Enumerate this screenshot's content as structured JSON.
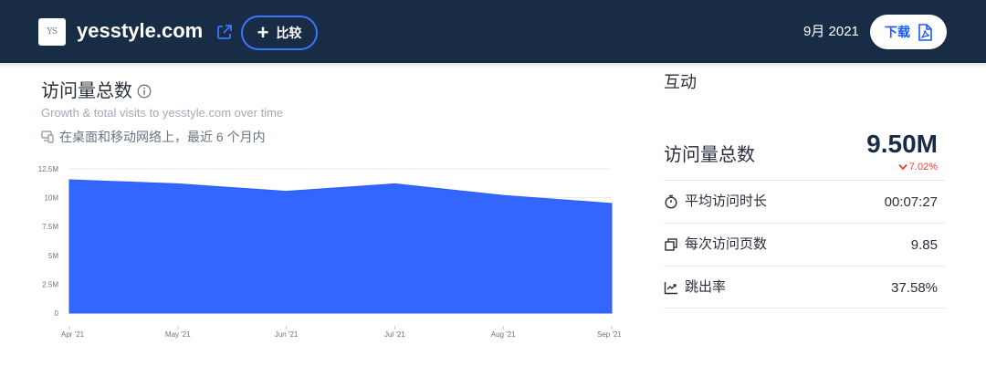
{
  "header": {
    "logo_text": "YS",
    "site_name": "yesstyle.com",
    "compare_label": "比较",
    "date": "9月 2021",
    "download_label": "下载",
    "bg_color": "#192c45",
    "accent_color": "#195afe",
    "icons": [
      "external-link-icon",
      "plus-icon",
      "pdf-icon"
    ]
  },
  "visits": {
    "title": "访问量总数",
    "subtitle": "Growth & total visits to yesstyle.com over time",
    "scope": "在桌面和移动网络上，最近 6 个月内",
    "icons": [
      "info-icon",
      "devices-icon"
    ]
  },
  "chart_data": {
    "type": "area",
    "categories": [
      "Apr '21",
      "May '21",
      "Jun '21",
      "Jul '21",
      "Aug '21",
      "Sep '21"
    ],
    "series": [
      {
        "values": [
          11.55,
          11.2,
          10.55,
          11.2,
          10.2,
          9.5
        ],
        "color": "#3366ff"
      }
    ],
    "unit": "M",
    "ylim": [
      0,
      12.5
    ],
    "yticks": [
      "0",
      "2.5M",
      "5M",
      "7.5M",
      "10M",
      "12.5M"
    ],
    "grid": true,
    "legend": "none"
  },
  "engagement": {
    "title": "互动",
    "total_visits_label": "访问量总数",
    "total_visits_value": "9.50M",
    "total_visits_change": "7.02%",
    "change_direction": "down",
    "change_color": "#ef3e36",
    "rows": [
      {
        "icon": "timer-icon",
        "label": "平均访问时长",
        "value": "00:07:27"
      },
      {
        "icon": "pages-icon",
        "label": "每次访问页数",
        "value": "9.85"
      },
      {
        "icon": "bounce-icon",
        "label": "跳出率",
        "value": "37.58%"
      }
    ]
  }
}
